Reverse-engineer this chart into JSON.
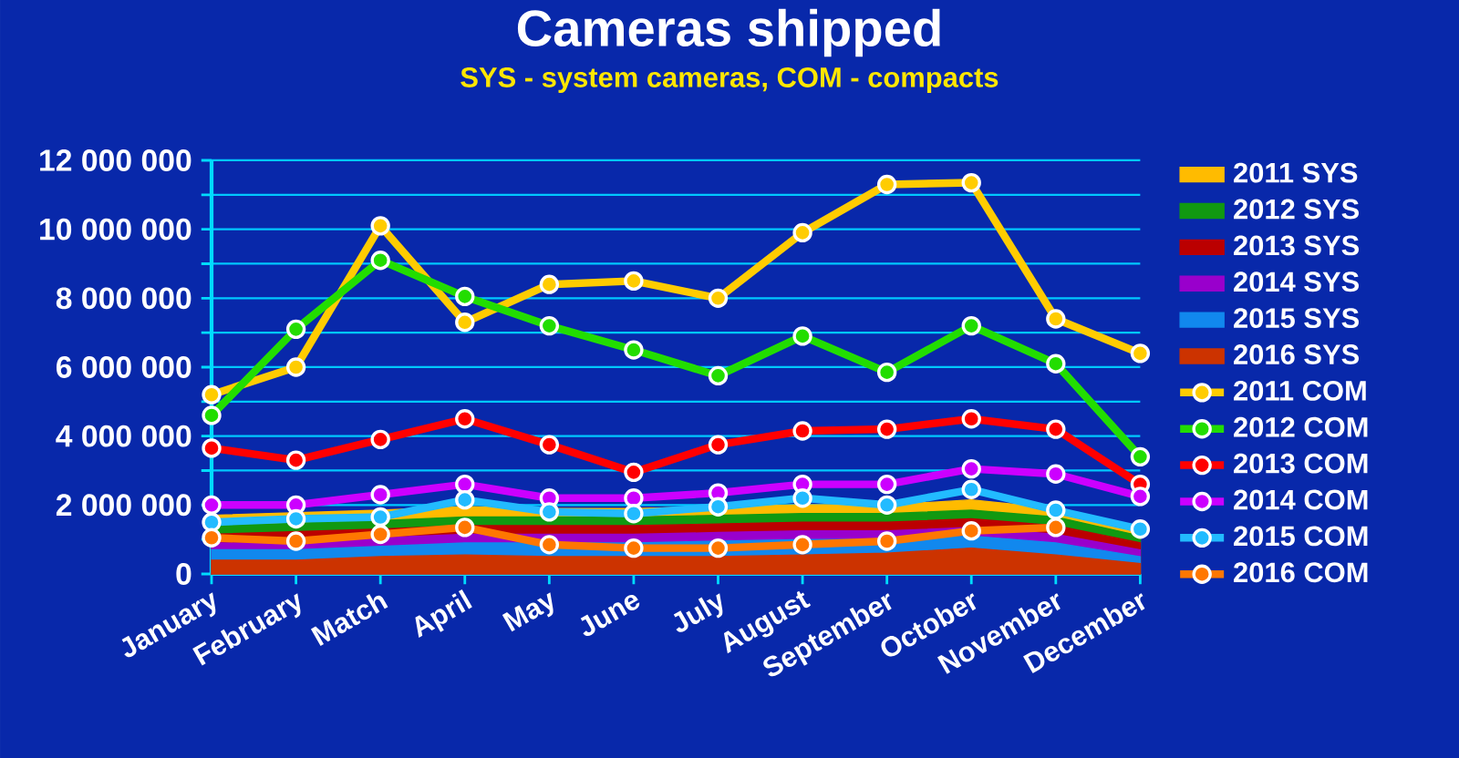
{
  "chart_data": {
    "type": "line",
    "title": "Cameras shipped",
    "subtitle": "SYS - system cameras, COM - compacts",
    "categories": [
      "January",
      "February",
      "Match",
      "April",
      "May",
      "June",
      "July",
      "August",
      "September",
      "October",
      "November",
      "December"
    ],
    "ylim": [
      0,
      12000000
    ],
    "yticks": [
      {
        "value": 0,
        "label": "0"
      },
      {
        "value": 1000000,
        "label": null
      },
      {
        "value": 2000000,
        "label": "2 000 000"
      },
      {
        "value": 3000000,
        "label": null
      },
      {
        "value": 4000000,
        "label": "4 000 000"
      },
      {
        "value": 5000000,
        "label": null
      },
      {
        "value": 6000000,
        "label": "6 000 000"
      },
      {
        "value": 7000000,
        "label": null
      },
      {
        "value": 8000000,
        "label": "8 000 000"
      },
      {
        "value": 9000000,
        "label": null
      },
      {
        "value": 10000000,
        "label": "10 000 000"
      },
      {
        "value": 11000000,
        "label": null
      },
      {
        "value": 12000000,
        "label": "12 000 000"
      }
    ],
    "grid": "y",
    "legend": "right",
    "line_style": "solid",
    "series": [
      {
        "name": "2011 SYS",
        "type": "area",
        "color": "#ffbb00",
        "values": [
          1700000,
          null,
          1850000,
          1950000,
          1900000,
          1900000,
          1950000,
          2000000,
          2000000,
          2150000,
          1900000,
          1300000
        ]
      },
      {
        "name": "2012 SYS",
        "type": "area",
        "color": "#119911",
        "values": [
          1400000,
          null,
          1550000,
          1650000,
          1650000,
          1650000,
          1700000,
          1750000,
          1750000,
          1850000,
          1650000,
          1100000
        ]
      },
      {
        "name": "2013 SYS",
        "type": "area",
        "color": "#bb0000",
        "values": [
          1150000,
          null,
          1300000,
          1400000,
          1400000,
          1400000,
          1450000,
          1500000,
          1500000,
          1600000,
          1400000,
          900000
        ]
      },
      {
        "name": "2014 SYS",
        "type": "area",
        "color": "#9900cc",
        "values": [
          900000,
          900000,
          1050000,
          1150000,
          1150000,
          1150000,
          1200000,
          1250000,
          1250000,
          1350000,
          1150000,
          700000
        ]
      },
      {
        "name": "2015 SYS",
        "type": "area",
        "color": "#1188ee",
        "values": [
          700000,
          700000,
          800000,
          900000,
          900000,
          900000,
          950000,
          1000000,
          1000000,
          1100000,
          900000,
          500000
        ]
      },
      {
        "name": "2016 SYS",
        "type": "area",
        "color": "#cc3300",
        "values": [
          400000,
          400000,
          500000,
          550000,
          500000,
          500000,
          500000,
          550000,
          600000,
          750000,
          550000,
          300000
        ]
      },
      {
        "name": "2011 COM",
        "type": "line",
        "marker": "circle",
        "color": "#ffcc00",
        "values": [
          5200000,
          6000000,
          10100000,
          7300000,
          8400000,
          8500000,
          8000000,
          9900000,
          11300000,
          11350000,
          7400000,
          6400000
        ]
      },
      {
        "name": "2012 COM",
        "type": "line",
        "marker": "circle",
        "color": "#22dd00",
        "values": [
          4600000,
          7100000,
          9100000,
          8050000,
          7200000,
          6500000,
          5750000,
          6900000,
          5850000,
          7200000,
          6100000,
          3400000
        ]
      },
      {
        "name": "2013 COM",
        "type": "line",
        "marker": "circle",
        "color": "#ff0000",
        "values": [
          3650000,
          3300000,
          3900000,
          4500000,
          3750000,
          2950000,
          3750000,
          4150000,
          4200000,
          4500000,
          4200000,
          2600000
        ]
      },
      {
        "name": "2014 COM",
        "type": "line",
        "marker": "circle",
        "color": "#cc00ff",
        "values": [
          2000000,
          2000000,
          2300000,
          2600000,
          2200000,
          2200000,
          2350000,
          2600000,
          2600000,
          3050000,
          2900000,
          2250000
        ]
      },
      {
        "name": "2015 COM",
        "type": "line",
        "marker": "circle",
        "color": "#22bbff",
        "values": [
          1500000,
          1600000,
          1650000,
          2150000,
          1800000,
          1750000,
          1950000,
          2200000,
          2000000,
          2450000,
          1850000,
          1300000
        ]
      },
      {
        "name": "2016 COM",
        "type": "line",
        "marker": "circle",
        "color": "#ff7700",
        "values": [
          1050000,
          950000,
          1150000,
          1350000,
          850000,
          750000,
          750000,
          850000,
          950000,
          1250000,
          1350000,
          null
        ]
      }
    ]
  }
}
